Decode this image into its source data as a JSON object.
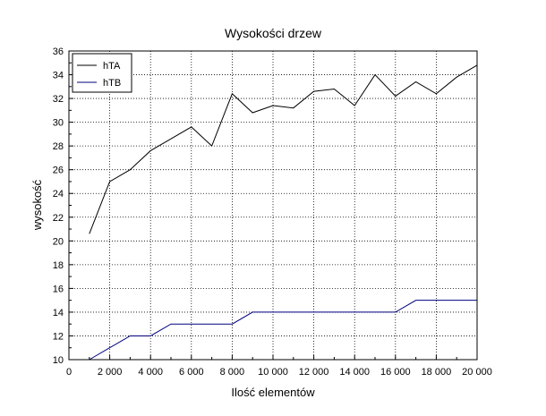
{
  "chart_data": {
    "type": "line",
    "title": "Wysokości drzew",
    "xlabel": "Ilość elementów",
    "ylabel": "wysokość",
    "xlim": [
      0,
      20000
    ],
    "ylim": [
      10,
      36
    ],
    "xticks": [
      0,
      2000,
      4000,
      6000,
      8000,
      10000,
      12000,
      14000,
      16000,
      18000,
      20000
    ],
    "xtick_labels": [
      "0",
      "2 000",
      "4 000",
      "6 000",
      "8 000",
      "10 000",
      "12 000",
      "14 000",
      "16 000",
      "18 000",
      "20 000"
    ],
    "yticks": [
      10,
      12,
      14,
      16,
      18,
      20,
      22,
      24,
      26,
      28,
      30,
      32,
      34,
      36
    ],
    "ytick_labels": [
      "10",
      "12",
      "14",
      "16",
      "18",
      "20",
      "22",
      "24",
      "26",
      "28",
      "30",
      "32",
      "34",
      "36"
    ],
    "grid": true,
    "legend_position": "top-left",
    "x": [
      1000,
      2000,
      3000,
      4000,
      5000,
      6000,
      7000,
      8000,
      9000,
      10000,
      11000,
      12000,
      13000,
      14000,
      15000,
      16000,
      17000,
      18000,
      19000,
      20000
    ],
    "series": [
      {
        "name": "hTA",
        "color": "#000000",
        "values": [
          20.6,
          25.0,
          26.0,
          27.6,
          28.6,
          29.6,
          28.0,
          32.4,
          30.8,
          31.4,
          31.2,
          32.6,
          32.8,
          31.4,
          34.0,
          32.2,
          33.4,
          32.4,
          33.8,
          34.8
        ]
      },
      {
        "name": "hTB",
        "color": "#00007f",
        "values": [
          10,
          11,
          12,
          12,
          13,
          13,
          13,
          13,
          14,
          14,
          14,
          14,
          14,
          14,
          14,
          14,
          15,
          15,
          15,
          15
        ]
      }
    ]
  }
}
